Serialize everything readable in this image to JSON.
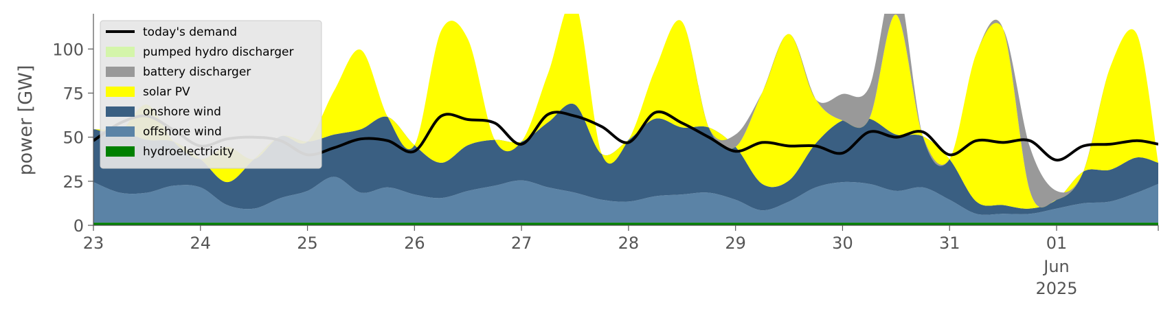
{
  "chart_data": {
    "type": "area",
    "title": "",
    "xlabel": "",
    "ylabel": "power [GW]",
    "ylim": [
      0,
      120
    ],
    "xlim": [
      0,
      9.95
    ],
    "x_unit": "days since 23 May 2025 00:00",
    "grid": false,
    "legend_position": "top-left",
    "xticks": [
      {
        "x": 0,
        "label": "23"
      },
      {
        "x": 1,
        "label": "24"
      },
      {
        "x": 2,
        "label": "25"
      },
      {
        "x": 3,
        "label": "26"
      },
      {
        "x": 4,
        "label": "27"
      },
      {
        "x": 5,
        "label": "28"
      },
      {
        "x": 6,
        "label": "29"
      },
      {
        "x": 7,
        "label": "30"
      },
      {
        "x": 8,
        "label": "31"
      },
      {
        "x": 9,
        "label": "01",
        "sub": [
          "Jun",
          "2025"
        ]
      }
    ],
    "yticks": [
      0,
      25,
      50,
      75,
      100
    ],
    "x": [
      0,
      0.25,
      0.5,
      0.75,
      1,
      1.25,
      1.5,
      1.75,
      2,
      2.25,
      2.5,
      2.75,
      3,
      3.25,
      3.5,
      3.75,
      4,
      4.25,
      4.5,
      4.75,
      5,
      5.25,
      5.5,
      5.75,
      6,
      6.25,
      6.5,
      6.75,
      7,
      7.25,
      7.5,
      7.75,
      8,
      8.25,
      8.5,
      8.75,
      9,
      9.25,
      9.5,
      9.75,
      9.95
    ],
    "stack_series": [
      {
        "name": "hydroelectricity",
        "color": "#008000",
        "values": [
          1.5,
          1.5,
          1.5,
          1.5,
          1.5,
          1.5,
          1.5,
          1.5,
          1.5,
          1.5,
          1.5,
          1.5,
          1.5,
          1.5,
          1.5,
          1.5,
          1.5,
          1.5,
          1.5,
          1.5,
          1.5,
          1.5,
          1.5,
          1.5,
          1.5,
          1.5,
          1.5,
          1.5,
          1.5,
          1.5,
          1.5,
          1.5,
          1.5,
          1.5,
          1.5,
          1.5,
          1.5,
          1.5,
          1.5,
          1.5,
          1.5
        ]
      },
      {
        "name": "offshore wind",
        "color": "#5b83a6",
        "values": [
          23,
          17,
          17,
          21,
          20,
          10,
          8,
          14,
          18,
          26,
          17,
          20,
          16,
          14,
          18,
          21,
          24,
          20,
          17,
          13,
          12,
          15,
          16,
          17,
          13,
          7,
          12,
          20,
          23,
          22,
          18,
          20,
          13,
          5,
          5,
          5,
          8,
          11,
          12,
          17,
          22
        ]
      },
      {
        "name": "onshore wind",
        "color": "#3a5f82",
        "values": [
          30,
          35,
          30,
          25,
          16,
          13,
          28,
          35,
          28,
          24,
          36,
          40,
          28,
          20,
          26,
          26,
          22,
          37,
          50,
          26,
          35,
          44,
          38,
          37,
          30,
          15,
          12,
          25,
          35,
          37,
          32,
          29,
          23,
          7,
          5,
          3,
          5,
          18,
          18,
          20,
          12
        ]
      },
      {
        "name": "solar PV",
        "color": "#ffff00",
        "values": [
          0,
          0,
          20,
          0,
          0,
          20,
          0,
          0,
          0,
          25,
          45,
          0,
          0,
          75,
          60,
          0,
          0,
          28,
          58,
          0,
          0,
          28,
          60,
          0,
          0,
          52,
          83,
          25,
          0,
          0,
          68,
          0,
          0,
          84,
          100,
          10,
          0,
          0,
          58,
          70,
          0
        ]
      },
      {
        "name": "battery discharger",
        "color": "#999999",
        "values": [
          0,
          0,
          0,
          0,
          0,
          0,
          0,
          0,
          0,
          0,
          0,
          0,
          0,
          0,
          0,
          0,
          0,
          0,
          0,
          0,
          0,
          0,
          0,
          0,
          7,
          0,
          0,
          0,
          15,
          18,
          20,
          0,
          0,
          0,
          0,
          25,
          5,
          0,
          0,
          0,
          0
        ]
      },
      {
        "name": "pumped hydro discharger",
        "color": "#d4f5aa",
        "values": [
          0,
          0,
          0,
          0,
          0,
          0,
          0,
          0,
          0,
          0,
          0,
          0,
          0,
          0,
          0,
          0,
          0,
          0,
          0,
          0,
          0,
          0,
          0,
          0,
          0,
          0,
          0,
          0,
          0,
          0,
          0,
          0,
          0,
          0,
          0,
          0,
          0,
          0,
          0,
          0,
          0
        ]
      }
    ],
    "line_series": [
      {
        "name": "today's demand",
        "color": "#000000",
        "values": [
          48,
          58,
          62,
          54,
          45,
          49,
          50,
          48,
          40,
          44,
          49,
          48,
          42,
          62,
          60,
          58,
          46,
          63,
          62,
          56,
          47,
          64,
          58,
          50,
          42,
          47,
          45,
          45,
          41,
          53,
          50,
          53,
          40,
          48,
          47,
          48,
          37,
          45,
          46,
          48,
          46
        ]
      }
    ],
    "legend": [
      {
        "label": "today's demand",
        "kind": "line",
        "color": "#000000"
      },
      {
        "label": "pumped hydro discharger",
        "kind": "patch",
        "color": "#d4f5aa"
      },
      {
        "label": "battery discharger",
        "kind": "patch",
        "color": "#999999"
      },
      {
        "label": "solar PV",
        "kind": "patch",
        "color": "#ffff00"
      },
      {
        "label": "onshore wind",
        "kind": "patch",
        "color": "#3a5f82"
      },
      {
        "label": "offshore wind",
        "kind": "patch",
        "color": "#5b83a6"
      },
      {
        "label": "hydroelectricity",
        "kind": "patch",
        "color": "#008000"
      }
    ]
  }
}
